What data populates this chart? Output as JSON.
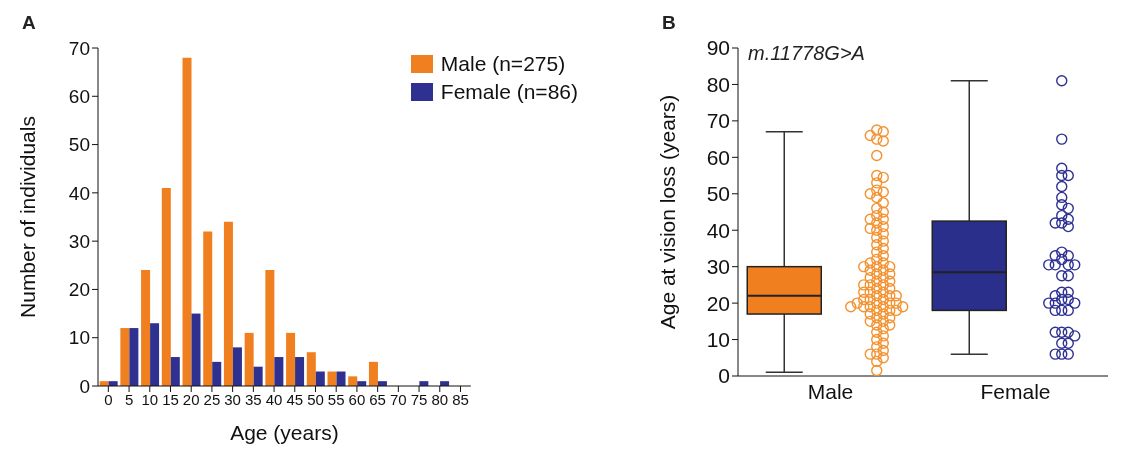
{
  "chart_data": [
    {
      "type": "bar",
      "annotations": [
        "A"
      ],
      "xlabel": "Age (years)",
      "ylabel": "Number of individuals",
      "categories": [
        "0",
        "5",
        "10",
        "15",
        "20",
        "25",
        "30",
        "35",
        "40",
        "45",
        "50",
        "55",
        "60",
        "65",
        "70",
        "75",
        "80",
        "85"
      ],
      "series": [
        {
          "name": "Male (n=275)",
          "color": "#f07f1f",
          "values": [
            1,
            12,
            24,
            41,
            68,
            32,
            34,
            11,
            24,
            11,
            7,
            3,
            2,
            5,
            0,
            0,
            0,
            0
          ]
        },
        {
          "name": "Female (n=86)",
          "color": "#2e3190",
          "values": [
            1,
            12,
            13,
            6,
            15,
            5,
            8,
            4,
            6,
            6,
            3,
            3,
            1,
            1,
            0,
            1,
            1,
            0
          ]
        }
      ],
      "ylim": [
        0,
        70
      ],
      "yticks": [
        0,
        10,
        20,
        30,
        40,
        50,
        60,
        70
      ],
      "grid": false,
      "legend": "top right"
    },
    {
      "type": "box",
      "annotations": [
        "B",
        "m.11778G>A"
      ],
      "ylabel": "Age at vision loss (years)",
      "categories": [
        "Male",
        "Female"
      ],
      "colors": [
        "#f07f1f",
        "#2b2f8c"
      ],
      "boxes": [
        {
          "low": 1,
          "q1": 17,
          "median": 22,
          "q3": 30,
          "high": 67
        },
        {
          "low": 6,
          "q1": 18,
          "median": 28.5,
          "q3": 42.5,
          "high": 81
        }
      ],
      "series": [
        {
          "type": "scatter",
          "color": "#f39230",
          "x": [
            "Male",
            "Male",
            "Male",
            "Male",
            "Male",
            "Male",
            "Male",
            "Male",
            "Male",
            "Male",
            "Male",
            "Male",
            "Male",
            "Male",
            "Male",
            "Male",
            "Male",
            "Male",
            "Male",
            "Male",
            "Male",
            "Male",
            "Male",
            "Male",
            "Male",
            "Male",
            "Male",
            "Male",
            "Male",
            "Male",
            "Male",
            "Male",
            "Male",
            "Male",
            "Male",
            "Male",
            "Male",
            "Male",
            "Male",
            "Male",
            "Male",
            "Male",
            "Male",
            "Male",
            "Male",
            "Male",
            "Male",
            "Male",
            "Male",
            "Male",
            "Male",
            "Male",
            "Male",
            "Male",
            "Male",
            "Male",
            "Male",
            "Male",
            "Male",
            "Male",
            "Male",
            "Male",
            "Male",
            "Male",
            "Male",
            "Male",
            "Male",
            "Male",
            "Male",
            "Male",
            "Male",
            "Male",
            "Male",
            "Male",
            "Male",
            "Male",
            "Male",
            "Male",
            "Male",
            "Male",
            "Male",
            "Male",
            "Male",
            "Male",
            "Male",
            "Male",
            "Male",
            "Male",
            "Male",
            "Male"
          ],
          "values": [
            67.5,
            67,
            66,
            65,
            64.5,
            60.5,
            55,
            54.5,
            53,
            51,
            50.5,
            50,
            49,
            47.5,
            46,
            45,
            44,
            43,
            43,
            42,
            41,
            40.5,
            40,
            39,
            38,
            37,
            36,
            35,
            34,
            33,
            32,
            31,
            31,
            30,
            30,
            30,
            29,
            29,
            28,
            28,
            27,
            27,
            26,
            26,
            25,
            25,
            25,
            24,
            24,
            23,
            23,
            23,
            22,
            22,
            22,
            21,
            21,
            21,
            20,
            20,
            20,
            20,
            19,
            19,
            19,
            19,
            19,
            18,
            18,
            18,
            17,
            17,
            16,
            16,
            15,
            15,
            14,
            14,
            13,
            12,
            11,
            10,
            9,
            8,
            7,
            6,
            6,
            5,
            4,
            1.5
          ]
        },
        {
          "type": "scatter",
          "color": "#2e3192",
          "x": [
            "Female",
            "Female",
            "Female",
            "Female",
            "Female",
            "Female",
            "Female",
            "Female",
            "Female",
            "Female",
            "Female",
            "Female",
            "Female",
            "Female",
            "Female",
            "Female",
            "Female",
            "Female",
            "Female",
            "Female",
            "Female",
            "Female",
            "Female",
            "Female",
            "Female",
            "Female",
            "Female",
            "Female",
            "Female",
            "Female",
            "Female",
            "Female",
            "Female",
            "Female",
            "Female",
            "Female",
            "Female",
            "Female",
            "Female",
            "Female",
            "Female",
            "Female",
            "Female",
            "Female"
          ],
          "values": [
            81,
            65,
            57,
            55,
            55,
            52,
            49,
            47,
            46,
            44,
            43,
            42,
            42,
            41,
            34,
            33,
            33,
            32,
            30.5,
            30.5,
            30.5,
            30.5,
            27.5,
            27.5,
            23,
            23,
            22,
            21,
            21,
            20,
            20,
            20,
            18,
            18,
            18,
            12,
            12,
            12,
            11,
            9,
            9,
            6,
            6,
            6
          ]
        }
      ],
      "ylim": [
        0,
        90
      ],
      "yticks": [
        0,
        10,
        20,
        30,
        40,
        50,
        60,
        70,
        80,
        90
      ],
      "grid": false,
      "marker": "circle"
    }
  ]
}
